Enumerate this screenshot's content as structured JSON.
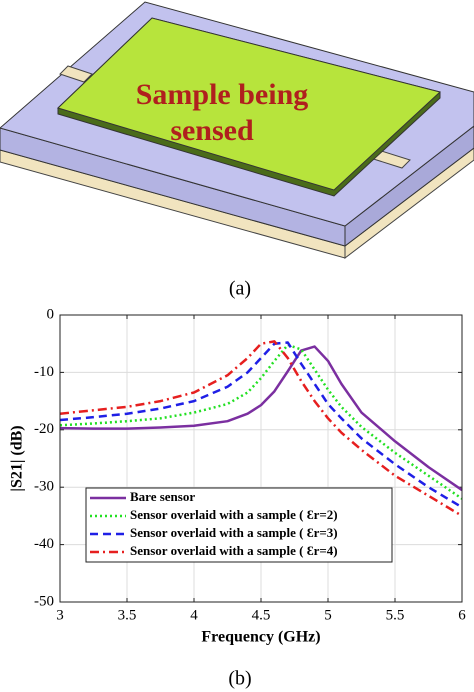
{
  "illustration": {
    "label_lines": [
      "Sample being",
      "sensed"
    ],
    "caption": "(a)"
  },
  "chart_data": {
    "type": "line",
    "caption": "(b)",
    "x_label": "Frequency (GHz)",
    "y_label": "|S21| (dB)",
    "x": [
      3,
      3.25,
      3.5,
      3.75,
      4,
      4.25,
      4.4,
      4.5,
      4.6,
      4.7,
      4.8,
      4.9,
      5,
      5.1,
      5.25,
      5.5,
      5.75,
      6
    ],
    "xlim": [
      3,
      6
    ],
    "xticks": [
      3,
      3.5,
      4,
      4.5,
      5,
      5.5,
      6
    ],
    "ylim": [
      -50,
      0
    ],
    "yticks": [
      0,
      -10,
      -20,
      -30,
      -40,
      -50
    ],
    "grid": true,
    "legend": "lower left",
    "series": [
      {
        "name": "Bare sensor",
        "color": "#7b2fa0",
        "dash": "solid",
        "values": [
          -19.7,
          -19.8,
          -19.8,
          -19.6,
          -19.3,
          -18.5,
          -17.2,
          -15.7,
          -13.3,
          -9.8,
          -6.2,
          -5.5,
          -8,
          -12,
          -17,
          -22,
          -26.5,
          -30.5
        ]
      },
      {
        "name": "Sensor overlaid with a sample ( Ɛr=2)",
        "color": "#22e022",
        "dash": "dotted",
        "values": [
          -19.2,
          -18.9,
          -18.5,
          -18,
          -17,
          -15.5,
          -13.5,
          -11,
          -8,
          -5.2,
          -6,
          -9.5,
          -13,
          -16,
          -19.5,
          -24,
          -28,
          -32
        ]
      },
      {
        "name": "Sensor overlaid with a sample ( Ɛr=3)",
        "color": "#1f1fe6",
        "dash": "dashed",
        "values": [
          -18.3,
          -17.8,
          -17.2,
          -16.3,
          -15,
          -12.5,
          -10,
          -7.5,
          -5,
          -4.8,
          -8.5,
          -12,
          -15.5,
          -18,
          -21.5,
          -26,
          -30,
          -33.5
        ]
      },
      {
        "name": "Sensor overlaid with a sample ( Ɛr=4)",
        "color": "#e61f1f",
        "dash": "dashdot",
        "values": [
          -17.2,
          -16.6,
          -16,
          -15,
          -13.5,
          -10.5,
          -7.5,
          -5,
          -4.6,
          -7.5,
          -11.5,
          -15,
          -18,
          -20.5,
          -23.5,
          -28,
          -31.5,
          -35
        ]
      }
    ]
  }
}
